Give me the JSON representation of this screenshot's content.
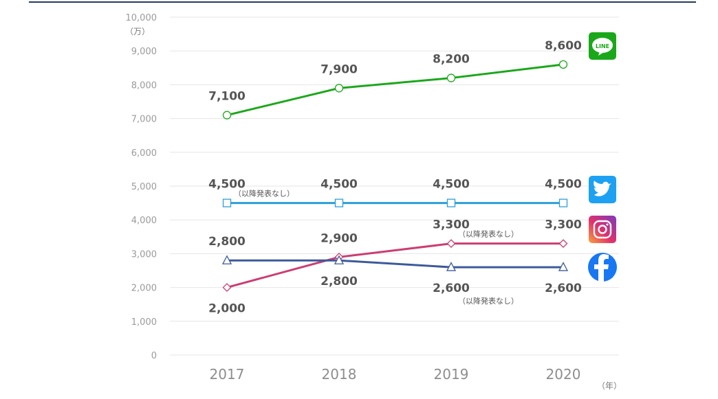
{
  "chart_data": {
    "type": "line",
    "title": "",
    "xlabel": "",
    "ylabel": "",
    "y_unit": "（万）",
    "x_unit": "（年）",
    "categories": [
      "2017",
      "2018",
      "2019",
      "2020"
    ],
    "ylim": [
      0,
      10000
    ],
    "yticks": [
      "0",
      "1,000",
      "2,000",
      "3,000",
      "4,000",
      "5,000",
      "6,000",
      "7,000",
      "8,000",
      "9,000",
      "10,000"
    ],
    "grid": true,
    "legend": "icons at right end of lines",
    "series": [
      {
        "icon": "line-logo-icon",
        "icon_text": "LINE",
        "color": "#1aa81a",
        "marker": "circle",
        "values": [
          7100,
          7900,
          8200,
          8600
        ],
        "labels": [
          "7,100",
          "7,900",
          "8,200",
          "8,600"
        ],
        "label_positions": [
          "above",
          "above",
          "above",
          "above"
        ],
        "note": "",
        "note_index": -1
      },
      {
        "icon": "twitter-logo-icon",
        "color": "#2a9fd8",
        "marker": "square",
        "values": [
          4500,
          4500,
          4500,
          4500
        ],
        "labels": [
          "4,500",
          "4,500",
          "4,500",
          "4,500"
        ],
        "label_positions": [
          "above",
          "above",
          "above",
          "above"
        ],
        "note": "（以降発表なし）",
        "note_index": 0
      },
      {
        "icon": "instagram-logo-icon",
        "color": "#cc3d72",
        "marker": "diamond",
        "values": [
          2000,
          2900,
          3300,
          3300
        ],
        "labels": [
          "2,000",
          "2,900",
          "3,300",
          "3,300"
        ],
        "label_positions": [
          "below",
          "above",
          "above",
          "above"
        ],
        "note": "（以降発表なし）",
        "note_index": 2
      },
      {
        "icon": "facebook-logo-icon",
        "color": "#3c5a9a",
        "marker": "triangle",
        "values": [
          2800,
          2800,
          2600,
          2600
        ],
        "labels": [
          "2,800",
          "2,800",
          "2,600",
          "2,600"
        ],
        "label_positions": [
          "above",
          "below",
          "below",
          "below"
        ],
        "note": "（以降発表なし）",
        "note_index": 2
      }
    ]
  }
}
